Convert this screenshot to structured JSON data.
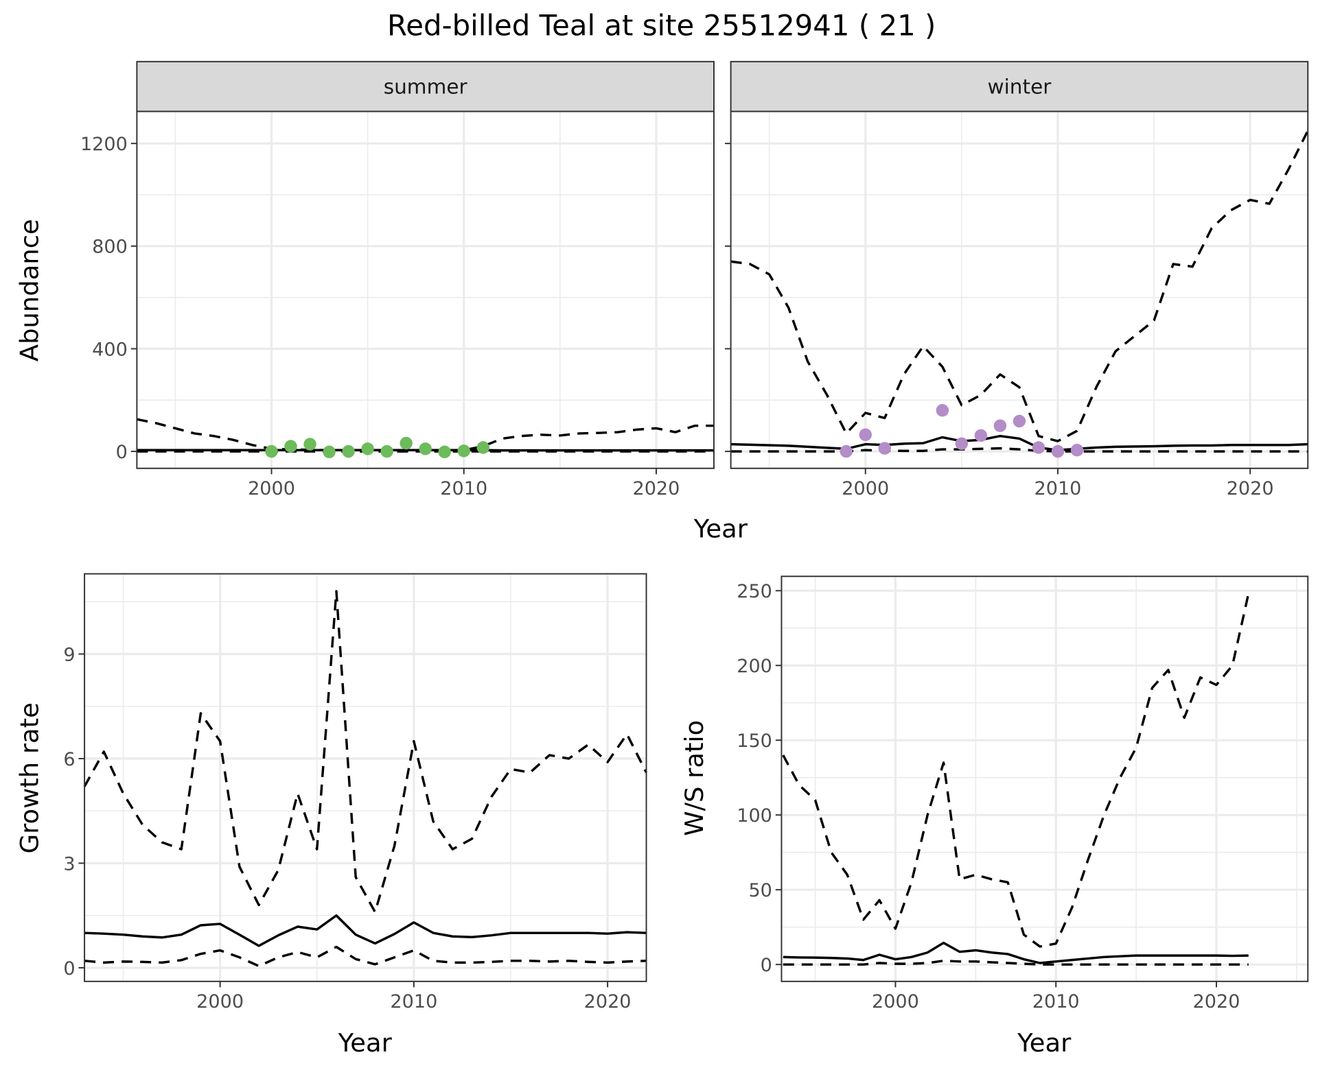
{
  "title": "Red-billed Teal at site 25512941 ( 21 )",
  "colors": {
    "summer_points": "#6dbb5b",
    "winter_points": "#b48cc8",
    "lines": "#000000",
    "strip_fill": "#d9d9d9",
    "grid": "#ebebeb"
  },
  "chart_data": [
    {
      "type": "line",
      "facet": "summer",
      "strip_label": "summer",
      "xlabel": "Year",
      "ylabel": "Abundance",
      "xlim": [
        1993,
        2023
      ],
      "ylim": [
        -66,
        1325
      ],
      "grid": true,
      "xticks": [
        2000,
        2010,
        2020
      ],
      "yticks": [
        0,
        400,
        800,
        1200
      ],
      "years": [
        1993,
        1994,
        1995,
        1996,
        1997,
        1998,
        1999,
        2000,
        2001,
        2002,
        2003,
        2004,
        2005,
        2006,
        2007,
        2008,
        2009,
        2010,
        2011,
        2012,
        2013,
        2014,
        2015,
        2016,
        2017,
        2018,
        2019,
        2020,
        2021,
        2022,
        2023
      ],
      "upper": [
        125,
        110,
        90,
        70,
        60,
        45,
        25,
        10,
        8,
        6,
        5,
        5,
        5,
        5,
        5,
        5,
        5,
        5,
        20,
        50,
        60,
        65,
        62,
        70,
        72,
        75,
        85,
        90,
        75,
        100,
        100
      ],
      "mean": [
        5,
        5,
        5,
        5,
        5,
        5,
        5,
        5,
        5,
        5,
        5,
        5,
        5,
        5,
        5,
        5,
        5,
        5,
        5,
        4,
        4,
        4,
        4,
        4,
        4,
        4,
        4,
        4,
        4,
        4,
        4
      ],
      "lower": [
        0,
        0,
        0,
        0,
        0,
        0,
        0,
        0,
        0,
        0,
        0,
        0,
        0,
        0,
        0,
        0,
        0,
        0,
        0,
        0,
        0,
        0,
        0,
        0,
        0,
        0,
        0,
        0,
        0,
        0,
        0
      ],
      "points": {
        "years": [
          2000,
          2001,
          2002,
          2003,
          2004,
          2005,
          2006,
          2007,
          2008,
          2009,
          2010,
          2011
        ],
        "values": [
          0,
          20,
          28,
          -2,
          0,
          10,
          0,
          32,
          10,
          -2,
          2,
          15
        ]
      }
    },
    {
      "type": "line",
      "facet": "winter",
      "strip_label": "winter",
      "xlabel": "Year",
      "ylabel": "Abundance",
      "xlim": [
        1993,
        2023
      ],
      "ylim": [
        -66,
        1325
      ],
      "grid": true,
      "xticks": [
        2000,
        2010,
        2020
      ],
      "yticks": [
        0,
        400,
        800,
        1200
      ],
      "years": [
        1993,
        1994,
        1995,
        1996,
        1997,
        1998,
        1999,
        2000,
        2001,
        2002,
        2003,
        2004,
        2005,
        2006,
        2007,
        2008,
        2009,
        2010,
        2011,
        2012,
        2013,
        2014,
        2015,
        2016,
        2017,
        2018,
        2019,
        2020,
        2021,
        2022,
        2023
      ],
      "upper": [
        740,
        730,
        690,
        560,
        350,
        220,
        70,
        150,
        130,
        300,
        410,
        330,
        180,
        220,
        300,
        250,
        60,
        40,
        80,
        250,
        390,
        450,
        510,
        730,
        720,
        870,
        940,
        980,
        965,
        1100,
        1250
      ],
      "mean": [
        28,
        26,
        24,
        22,
        18,
        14,
        10,
        28,
        25,
        30,
        32,
        55,
        40,
        45,
        60,
        50,
        15,
        5,
        10,
        15,
        18,
        19,
        20,
        22,
        23,
        23,
        25,
        25,
        25,
        25,
        28
      ],
      "lower": [
        0,
        0,
        0,
        0,
        0,
        0,
        0,
        5,
        3,
        2,
        2,
        8,
        8,
        10,
        12,
        8,
        2,
        0,
        0,
        0,
        0,
        0,
        0,
        0,
        0,
        0,
        0,
        0,
        0,
        0,
        0
      ],
      "points": {
        "years": [
          1999,
          2000,
          2001,
          2004,
          2005,
          2006,
          2007,
          2008,
          2009,
          2010,
          2011
        ],
        "values": [
          0,
          65,
          12,
          160,
          30,
          62,
          100,
          118,
          15,
          0,
          5
        ]
      }
    },
    {
      "type": "line",
      "xlabel": "Year",
      "ylabel": "Growth rate",
      "xlim": [
        1993,
        2022
      ],
      "ylim": [
        -0.39,
        11.3
      ],
      "grid": true,
      "xticks": [
        2000,
        2010,
        2020
      ],
      "yticks": [
        0,
        3,
        6,
        9
      ],
      "years": [
        1993,
        1994,
        1995,
        1996,
        1997,
        1998,
        1999,
        2000,
        2001,
        2002,
        2003,
        2004,
        2005,
        2006,
        2007,
        2008,
        2009,
        2010,
        2011,
        2012,
        2013,
        2014,
        2015,
        2016,
        2017,
        2018,
        2019,
        2020,
        2021,
        2022
      ],
      "upper": [
        5.2,
        6.2,
        5.0,
        4.1,
        3.6,
        3.4,
        7.3,
        6.5,
        2.9,
        1.8,
        2.8,
        5.0,
        3.4,
        10.8,
        2.6,
        1.6,
        3.5,
        6.5,
        4.2,
        3.4,
        3.7,
        4.9,
        5.7,
        5.6,
        6.1,
        6.0,
        6.4,
        5.9,
        6.7,
        5.6
      ],
      "mean": [
        1.0,
        0.98,
        0.95,
        0.9,
        0.87,
        0.95,
        1.22,
        1.26,
        0.95,
        0.63,
        0.93,
        1.18,
        1.1,
        1.5,
        0.95,
        0.7,
        0.97,
        1.3,
        1.0,
        0.9,
        0.88,
        0.93,
        1.0,
        1.0,
        1.0,
        1.0,
        1.0,
        0.98,
        1.02,
        1.0
      ],
      "lower": [
        0.2,
        0.15,
        0.18,
        0.17,
        0.15,
        0.22,
        0.4,
        0.5,
        0.3,
        0.05,
        0.3,
        0.45,
        0.3,
        0.6,
        0.25,
        0.1,
        0.3,
        0.5,
        0.2,
        0.15,
        0.15,
        0.17,
        0.2,
        0.2,
        0.18,
        0.2,
        0.17,
        0.15,
        0.18,
        0.2
      ]
    },
    {
      "type": "line",
      "xlabel": "Year",
      "ylabel": "W/S ratio",
      "xlim": [
        1992.9,
        2025.7
      ],
      "ylim": [
        -11.3,
        259.6
      ],
      "grid": true,
      "xticks": [
        2000,
        2010,
        2020
      ],
      "yticks": [
        0,
        50,
        100,
        150,
        200,
        250
      ],
      "years": [
        1993,
        1994,
        1995,
        1996,
        1997,
        1998,
        1999,
        2000,
        2001,
        2002,
        2003,
        2004,
        2005,
        2006,
        2007,
        2008,
        2009,
        2010,
        2011,
        2012,
        2013,
        2014,
        2015,
        2016,
        2017,
        2018,
        2019,
        2020,
        2021,
        2022
      ],
      "upper": [
        140,
        120,
        110,
        75,
        60,
        30,
        43,
        24,
        55,
        100,
        135,
        57,
        60,
        57,
        55,
        20,
        12,
        14,
        38,
        70,
        100,
        125,
        145,
        185,
        197,
        165,
        192,
        187,
        200,
        248
      ],
      "mean": [
        5,
        4.7,
        4.6,
        4.4,
        4,
        3,
        6.5,
        3.5,
        5,
        8,
        14.5,
        8.5,
        9.5,
        8,
        7,
        3.5,
        1,
        2,
        3,
        4,
        5,
        5.5,
        6,
        6,
        6,
        6,
        6,
        6,
        5.8,
        6
      ],
      "lower": [
        0,
        0,
        0,
        0,
        0,
        0,
        1,
        0.5,
        0.5,
        1,
        2.5,
        2,
        2,
        1.5,
        1,
        0.5,
        0,
        0,
        0,
        0,
        0,
        0,
        0,
        0,
        0,
        0,
        0,
        0,
        0,
        0
      ]
    }
  ]
}
